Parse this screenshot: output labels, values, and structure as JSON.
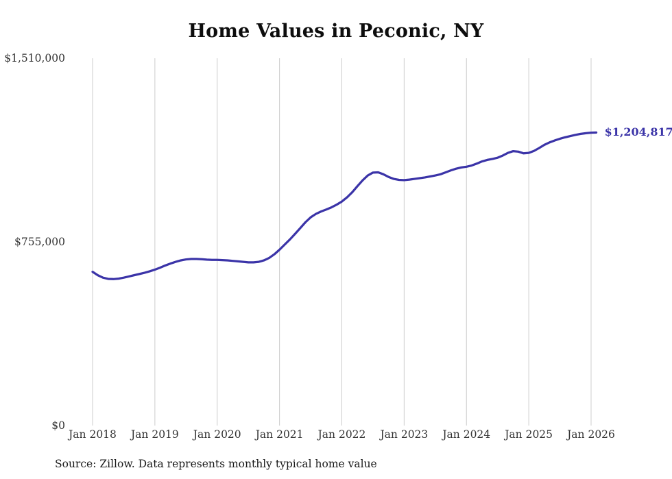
{
  "chart_data": {
    "type": "line",
    "title": "Home Values in Peconic, NY",
    "source": "Source: Zillow. Data represents monthly typical home value",
    "end_label": "$1,204,817",
    "latest_value": 1204817,
    "line_color": "#3b34a8",
    "gridline_color": "#cccccc",
    "ylim": [
      0,
      1510000
    ],
    "y_ticks": [
      {
        "label": "$1,510,000",
        "value": 1510000
      },
      {
        "label": "$755,000",
        "value": 755000
      },
      {
        "label": "$0",
        "value": 0
      }
    ],
    "x_ticks": [
      "Jan 2018",
      "Jan 2019",
      "Jan 2020",
      "Jan 2021",
      "Jan 2022",
      "Jan 2023",
      "Jan 2024",
      "Jan 2025",
      "Jan 2026"
    ],
    "start_month": "Jan 2018",
    "frequency": "monthly",
    "values": [
      632000,
      618000,
      608000,
      603000,
      602000,
      604000,
      608000,
      613000,
      618000,
      623000,
      628000,
      634000,
      641000,
      649000,
      658000,
      666000,
      673000,
      679000,
      683000,
      685000,
      685000,
      684000,
      682000,
      681000,
      681000,
      680000,
      679000,
      677000,
      675000,
      673000,
      671000,
      671000,
      673000,
      679000,
      689000,
      704000,
      723000,
      744000,
      765000,
      788000,
      812000,
      836000,
      856000,
      870000,
      880000,
      888000,
      897000,
      908000,
      921000,
      938000,
      959000,
      984000,
      1008000,
      1028000,
      1040000,
      1041000,
      1033000,
      1022000,
      1014000,
      1010000,
      1009000,
      1011000,
      1014000,
      1017000,
      1020000,
      1024000,
      1028000,
      1033000,
      1041000,
      1049000,
      1056000,
      1061000,
      1064000,
      1069000,
      1077000,
      1086000,
      1092000,
      1096000,
      1101000,
      1110000,
      1121000,
      1128000,
      1126000,
      1119000,
      1121000,
      1129000,
      1141000,
      1154000,
      1164000,
      1172000,
      1179000,
      1185000,
      1190000,
      1195000,
      1199000,
      1202000,
      1204000,
      1204817
    ]
  }
}
